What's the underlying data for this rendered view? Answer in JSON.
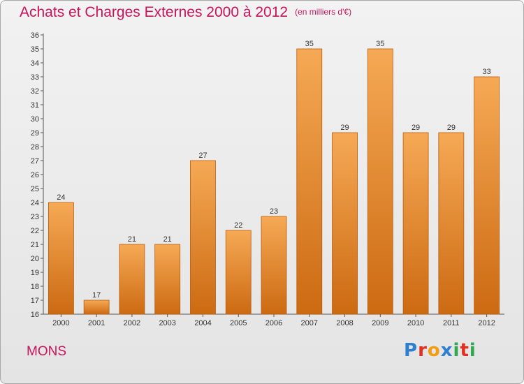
{
  "header": {
    "title": "Achats et Charges Externes 2000 à 2012",
    "subtitle": "(en milliers d'€)"
  },
  "footer": {
    "city": "MONS",
    "brand": "Proxiti",
    "brand_letters": [
      {
        "ch": "P",
        "color": "#2f7fd0"
      },
      {
        "ch": "r",
        "color": "#e03020"
      },
      {
        "ch": "o",
        "color": "#f39c12"
      },
      {
        "ch": "x",
        "color": "#2f7fd0"
      },
      {
        "ch": "i",
        "color": "#2fa84f"
      },
      {
        "ch": "t",
        "color": "#e03020"
      },
      {
        "ch": "i",
        "color": "#2fa84f"
      }
    ]
  },
  "colors": {
    "accent": "#c8145a",
    "bar_top": "#f6a955",
    "bar_bottom": "#cc6a12",
    "bar_edge": "#b85c0c"
  },
  "chart_data": {
    "type": "bar",
    "categories": [
      "2000",
      "2001",
      "2002",
      "2003",
      "2004",
      "2005",
      "2006",
      "2007",
      "2008",
      "2009",
      "2010",
      "2011",
      "2012"
    ],
    "values": [
      24,
      17,
      21,
      21,
      27,
      22,
      23,
      35,
      29,
      35,
      29,
      29,
      33
    ],
    "title": "Achats et Charges Externes 2000 à 2012",
    "subtitle": "(en milliers d'€)",
    "xlabel": "",
    "ylabel": "",
    "ylim": [
      16,
      36
    ],
    "yticks": [
      16,
      17,
      18,
      19,
      20,
      21,
      22,
      23,
      24,
      25,
      26,
      27,
      28,
      29,
      30,
      31,
      32,
      33,
      34,
      35,
      36
    ],
    "grid": false,
    "legend": "none"
  }
}
